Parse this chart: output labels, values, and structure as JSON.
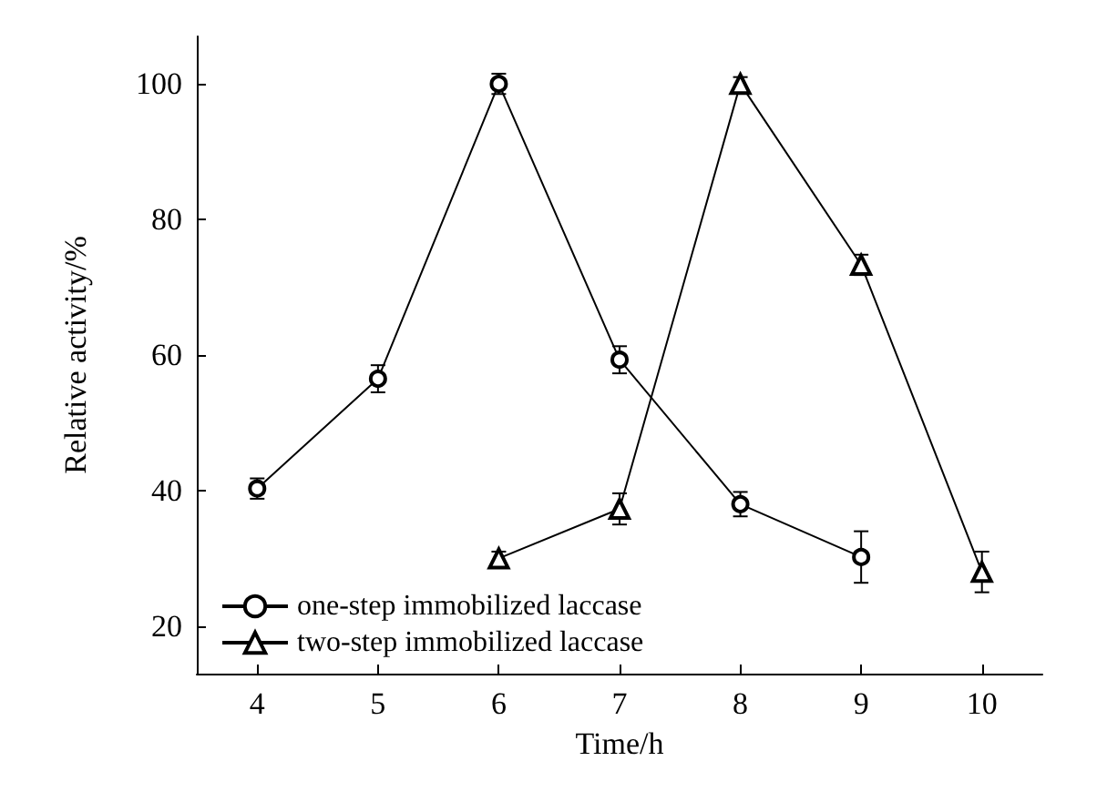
{
  "chart_data": {
    "type": "line",
    "xlabel": "Time/h",
    "ylabel": "Relative activity/%",
    "xlim": [
      3.5,
      10.5
    ],
    "ylim": [
      13,
      107
    ],
    "xticks": [
      4,
      5,
      6,
      7,
      8,
      9,
      10
    ],
    "yticks": [
      20,
      40,
      60,
      80,
      100
    ],
    "grid": false,
    "legend": "bottom left",
    "series": [
      {
        "name": "one-step immobilized laccase",
        "color": "#000000",
        "marker": "circle",
        "x": [
          4,
          5,
          6,
          7,
          8,
          9
        ],
        "values": [
          40.3,
          56.5,
          100,
          59.3,
          38,
          30.2
        ],
        "errors": [
          1.5,
          2,
          1.5,
          2,
          1.8,
          3.8
        ]
      },
      {
        "name": "two-step immobilized laccase",
        "color": "#000000",
        "marker": "triangle",
        "x": [
          6,
          7,
          8,
          9,
          10
        ],
        "values": [
          30,
          37.3,
          100,
          73.3,
          28
        ],
        "errors": [
          1,
          2.3,
          1,
          1.5,
          3
        ]
      }
    ]
  }
}
